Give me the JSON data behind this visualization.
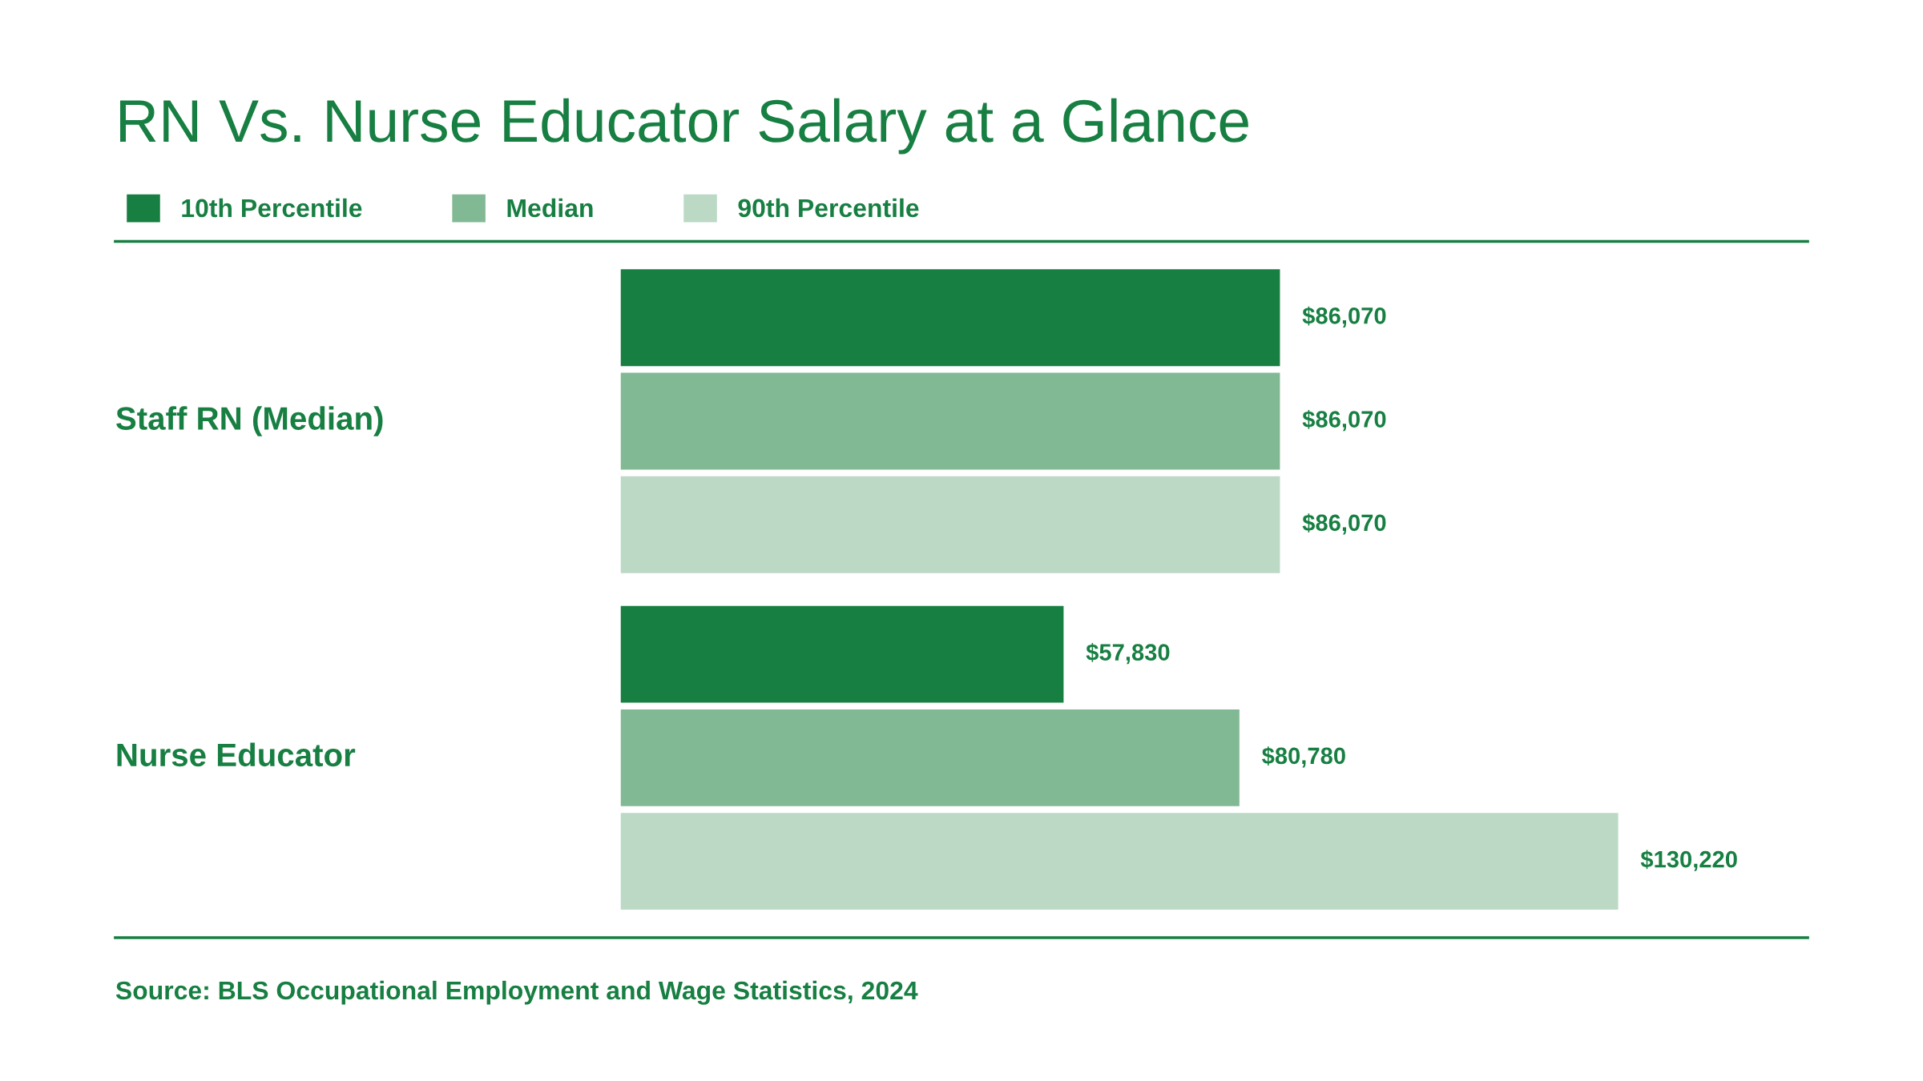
{
  "chart_data": {
    "type": "bar",
    "orientation": "horizontal",
    "title": "RN Vs. Nurse Educator Salary at a Glance",
    "categories": [
      "Staff RN (Median)",
      "Nurse Educator"
    ],
    "series": [
      {
        "name": "10th Percentile",
        "color": "#177f42",
        "values": [
          86070,
          57830
        ],
        "value_labels": [
          "$86,070",
          "$57,830"
        ]
      },
      {
        "name": "Median",
        "color": "#82b995",
        "values": [
          86070,
          80780
        ],
        "value_labels": [
          "$86,070",
          "$80,780"
        ]
      },
      {
        "name": "90th Percentile",
        "color": "#bcd9c6",
        "values": [
          86070,
          130220
        ],
        "value_labels": [
          "$86,070",
          "$130,220"
        ]
      }
    ],
    "legend": "top left",
    "annotations": [
      "Source: BLS Occupational Employment and Wage Statistics, 2024"
    ]
  }
}
